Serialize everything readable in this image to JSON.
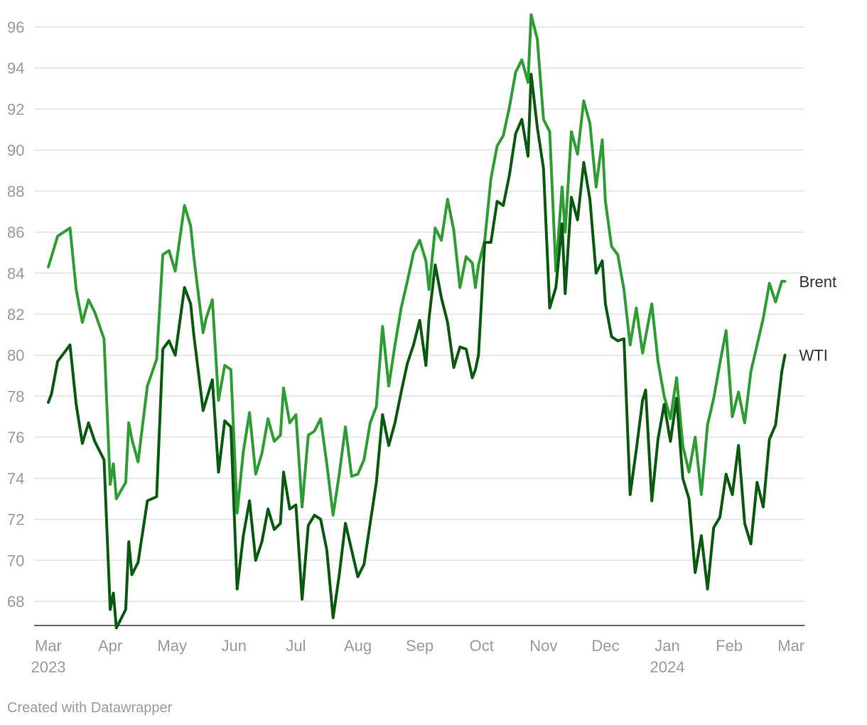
{
  "chart_data": {
    "type": "line",
    "title": "",
    "xlabel": "",
    "ylabel": "",
    "ylim": [
      66.6,
      96.6
    ],
    "yticks": [
      68,
      70,
      72,
      74,
      76,
      78,
      80,
      82,
      84,
      86,
      88,
      90,
      92,
      94,
      96
    ],
    "x_months": [
      {
        "label": "Mar",
        "year": "2023"
      },
      {
        "label": "Apr",
        "year": ""
      },
      {
        "label": "May",
        "year": ""
      },
      {
        "label": "Jun",
        "year": ""
      },
      {
        "label": "Jul",
        "year": ""
      },
      {
        "label": "Aug",
        "year": ""
      },
      {
        "label": "Sep",
        "year": ""
      },
      {
        "label": "Oct",
        "year": ""
      },
      {
        "label": "Nov",
        "year": ""
      },
      {
        "label": "Dec",
        "year": ""
      },
      {
        "label": "Jan",
        "year": "2024"
      },
      {
        "label": "Feb",
        "year": ""
      },
      {
        "label": "Mar",
        "year": ""
      }
    ],
    "x_unit": "months since Mar 1, 2023",
    "grid": true,
    "series": [
      {
        "name": "Brent",
        "label": "Brent",
        "color": "#2e9e34",
        "x": [
          0,
          0.05,
          0.15,
          0.35,
          0.45,
          0.55,
          0.65,
          0.75,
          0.9,
          1.0,
          1.05,
          1.1,
          1.25,
          1.3,
          1.35,
          1.45,
          1.6,
          1.75,
          1.85,
          1.95,
          2.05,
          2.2,
          2.3,
          2.35,
          2.5,
          2.55,
          2.65,
          2.75,
          2.85,
          2.95,
          3.05,
          3.15,
          3.25,
          3.35,
          3.45,
          3.55,
          3.65,
          3.75,
          3.8,
          3.9,
          4.0,
          4.1,
          4.2,
          4.3,
          4.4,
          4.5,
          4.6,
          4.7,
          4.8,
          4.9,
          5.0,
          5.1,
          5.2,
          5.3,
          5.4,
          5.5,
          5.6,
          5.7,
          5.8,
          5.9,
          6.0,
          6.1,
          6.15,
          6.25,
          6.35,
          6.45,
          6.55,
          6.65,
          6.75,
          6.85,
          6.9,
          6.95,
          7.05,
          7.15,
          7.25,
          7.35,
          7.45,
          7.55,
          7.65,
          7.75,
          7.8,
          7.9,
          8.0,
          8.1,
          8.2,
          8.3,
          8.35,
          8.45,
          8.55,
          8.65,
          8.75,
          8.85,
          8.95,
          9.0,
          9.1,
          9.2,
          9.3,
          9.4,
          9.5,
          9.6,
          9.65,
          9.75,
          9.85,
          9.95,
          10.05,
          10.15,
          10.25,
          10.35,
          10.45,
          10.55,
          10.65,
          10.75,
          10.85,
          10.95,
          11.05,
          11.15,
          11.25,
          11.35,
          11.45,
          11.55,
          11.65,
          11.75,
          11.85,
          11.9
        ],
        "y": [
          84.3,
          84.8,
          85.8,
          86.2,
          83.2,
          81.6,
          82.7,
          82.1,
          80.8,
          73.7,
          74.7,
          73.0,
          73.8,
          76.7,
          75.9,
          74.8,
          78.5,
          79.8,
          84.9,
          85.1,
          84.1,
          87.3,
          86.3,
          84.8,
          81.1,
          81.8,
          82.7,
          77.8,
          79.5,
          79.3,
          72.3,
          75.3,
          77.2,
          74.2,
          75.2,
          76.9,
          75.8,
          76.1,
          78.4,
          76.7,
          77.1,
          72.6,
          76.1,
          76.3,
          76.9,
          74.7,
          72.2,
          74.2,
          76.5,
          74.1,
          74.2,
          74.9,
          76.7,
          77.5,
          81.4,
          78.5,
          80.5,
          82.3,
          83.6,
          85.0,
          85.6,
          84.6,
          83.2,
          86.2,
          85.6,
          87.6,
          86.1,
          83.3,
          84.8,
          84.5,
          83.3,
          84.4,
          85.6,
          88.6,
          90.2,
          90.7,
          92.1,
          93.8,
          94.4,
          93.3,
          96.6,
          95.4,
          91.5,
          90.9,
          84.1,
          88.2,
          86.0,
          90.9,
          89.8,
          92.4,
          91.3,
          88.2,
          90.5,
          87.5,
          85.3,
          84.9,
          83.2,
          80.5,
          82.3,
          80.1,
          80.9,
          82.5,
          79.7,
          78.0,
          76.9,
          78.9,
          75.6,
          74.3,
          76.0,
          73.2,
          76.6,
          77.9,
          79.6,
          81.2,
          77.0,
          78.2,
          76.7,
          79.2,
          80.5,
          81.8,
          83.5,
          82.6,
          83.6,
          83.6
        ],
        "label_value": 83.6
      },
      {
        "name": "WTI",
        "label": "WTI",
        "color": "#0a5a0f",
        "x": [
          0,
          0.05,
          0.15,
          0.35,
          0.45,
          0.55,
          0.65,
          0.75,
          0.9,
          1.0,
          1.05,
          1.1,
          1.25,
          1.3,
          1.35,
          1.45,
          1.6,
          1.75,
          1.85,
          1.95,
          2.05,
          2.2,
          2.3,
          2.35,
          2.5,
          2.55,
          2.65,
          2.75,
          2.85,
          2.95,
          3.05,
          3.15,
          3.25,
          3.35,
          3.45,
          3.55,
          3.65,
          3.75,
          3.8,
          3.9,
          4.0,
          4.1,
          4.2,
          4.3,
          4.4,
          4.5,
          4.6,
          4.7,
          4.8,
          4.9,
          5.0,
          5.1,
          5.2,
          5.3,
          5.4,
          5.5,
          5.6,
          5.7,
          5.8,
          5.9,
          6.0,
          6.1,
          6.15,
          6.25,
          6.35,
          6.45,
          6.55,
          6.65,
          6.75,
          6.85,
          6.9,
          6.95,
          7.05,
          7.15,
          7.25,
          7.35,
          7.45,
          7.55,
          7.65,
          7.75,
          7.8,
          7.9,
          8.0,
          8.1,
          8.2,
          8.3,
          8.35,
          8.45,
          8.55,
          8.65,
          8.75,
          8.85,
          8.95,
          9.0,
          9.1,
          9.2,
          9.3,
          9.4,
          9.5,
          9.6,
          9.65,
          9.75,
          9.85,
          9.95,
          10.05,
          10.15,
          10.25,
          10.35,
          10.45,
          10.55,
          10.65,
          10.75,
          10.85,
          10.95,
          11.05,
          11.15,
          11.25,
          11.35,
          11.45,
          11.55,
          11.65,
          11.75,
          11.85,
          11.9
        ],
        "y": [
          77.7,
          78.1,
          79.7,
          80.5,
          77.6,
          75.7,
          76.7,
          75.8,
          74.9,
          67.6,
          68.4,
          66.7,
          67.6,
          70.9,
          69.3,
          69.9,
          72.9,
          73.1,
          80.3,
          80.7,
          80.0,
          83.3,
          82.5,
          81.0,
          77.3,
          77.8,
          78.8,
          74.3,
          76.8,
          76.5,
          68.6,
          71.2,
          72.9,
          70.0,
          70.9,
          72.5,
          71.5,
          71.8,
          74.3,
          72.5,
          72.7,
          68.1,
          71.7,
          72.2,
          72.0,
          70.5,
          67.2,
          69.3,
          71.8,
          70.5,
          69.2,
          69.8,
          71.8,
          73.8,
          77.1,
          75.6,
          76.7,
          78.2,
          79.6,
          80.5,
          81.7,
          79.5,
          81.8,
          84.4,
          82.8,
          81.6,
          79.4,
          80.4,
          80.3,
          78.9,
          79.3,
          80.0,
          85.5,
          85.5,
          87.5,
          87.3,
          88.8,
          90.8,
          91.5,
          89.7,
          93.7,
          91.1,
          89.1,
          82.3,
          83.3,
          86.4,
          83.0,
          87.7,
          86.6,
          89.4,
          87.6,
          84.0,
          84.6,
          82.5,
          80.9,
          80.7,
          80.8,
          73.2,
          75.4,
          77.8,
          78.3,
          72.9,
          75.9,
          77.6,
          75.8,
          77.9,
          74.0,
          73.0,
          69.4,
          71.2,
          68.6,
          71.6,
          72.1,
          74.2,
          73.2,
          75.6,
          71.8,
          70.8,
          73.8,
          72.6,
          75.9,
          76.6,
          79.2,
          80.0
        ],
        "label_value": 80.0
      }
    ]
  },
  "footer": {
    "credit": "Created with Datawrapper"
  }
}
